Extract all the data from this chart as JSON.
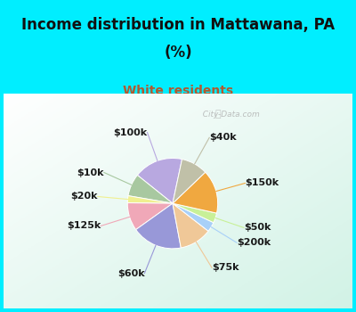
{
  "title_line1": "Income distribution in Mattawana, PA",
  "title_line2": "(%)",
  "subtitle": "White residents",
  "title_color": "#111111",
  "subtitle_color": "#b05a30",
  "bg_cyan": "#00eeff",
  "bg_chart_colors": [
    "#ffffff",
    "#d8efe0",
    "#c8e8d8"
  ],
  "labels": [
    "$100k",
    "$10k",
    "$20k",
    "$125k",
    "$60k",
    "$75k",
    "$200k",
    "$50k",
    "$150k",
    "$40k"
  ],
  "sizes": [
    17.5,
    8.0,
    2.5,
    10.0,
    18.0,
    11.5,
    3.5,
    3.5,
    15.5,
    9.5
  ],
  "colors": [
    "#b8a8e0",
    "#a8c8a0",
    "#f0f090",
    "#f0a8b8",
    "#9898d8",
    "#f0c898",
    "#a8d0f8",
    "#c8f098",
    "#f0a840",
    "#c0c0a8"
  ],
  "label_fontsize": 8,
  "title_fontsize": 12,
  "subtitle_fontsize": 10,
  "watermark": "  City-Data.com"
}
